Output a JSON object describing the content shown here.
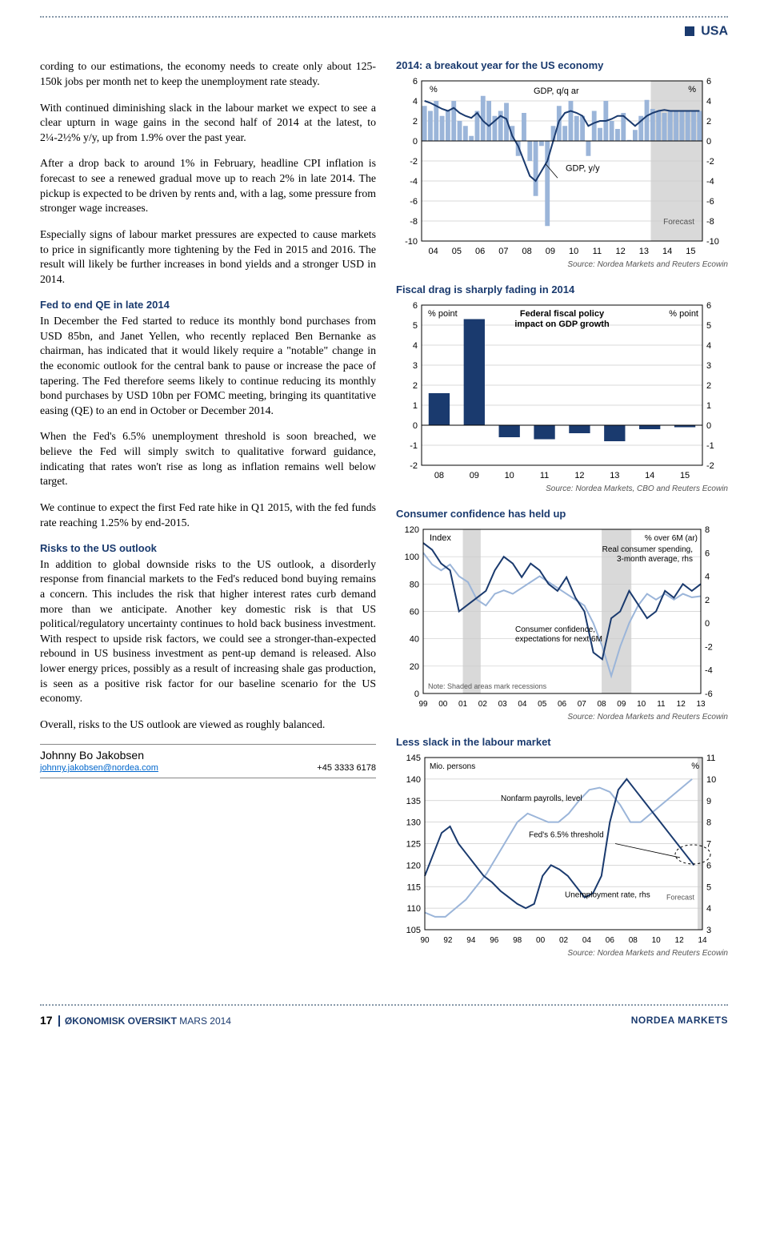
{
  "header": {
    "label": "USA"
  },
  "body": {
    "p1": "cording to our estimations, the economy needs to create only about 125-150k jobs per month net to keep the unemployment rate steady.",
    "p2": "With continued diminishing slack in the labour market we expect to see a clear upturn in wage gains in the second half of 2014 at the latest, to 2¼-2½% y/y, up from 1.9% over the past year.",
    "p3": "After a drop back to around 1% in February, headline CPI inflation is forecast to see a renewed gradual move up to reach 2% in late 2014. The pickup is expected to be driven by rents and, with a lag, some pressure from stronger wage increases.",
    "p4": "Especially signs of labour market pressures are expected to cause markets to price in significantly more tightening by the Fed in 2015 and 2016. The result will likely be further increases in bond yields and a stronger USD in 2014.",
    "h1": "Fed to end QE in late 2014",
    "p5": "In December the Fed started to reduce its monthly bond purchases from USD 85bn, and Janet Yellen, who recently replaced Ben Bernanke as chairman, has indicated that it would likely require a \"notable\" change in the economic outlook for the central bank to pause or increase the pace of tapering. The Fed therefore seems likely to continue reducing its monthly bond purchases by USD 10bn per FOMC meeting, bringing its quantitative easing (QE) to an end in October or December 2014.",
    "p6": "When the Fed's 6.5% unemployment threshold is soon breached, we believe the Fed will simply switch to qualitative forward guidance, indicating that rates won't rise as long as inflation remains well below target.",
    "p7": "We continue to expect the first Fed rate hike in Q1 2015, with the fed funds rate reaching 1.25% by end-2015.",
    "h2": "Risks to the US outlook",
    "p8": "In addition to global downside risks to the US outlook, a disorderly response from financial markets to the Fed's reduced bond buying remains a concern. This includes the risk that higher interest rates curb demand more than we anticipate. Another key domestic risk is that US political/regulatory uncertainty continues to hold back business investment. With respect to upside risk factors, we could see a stronger-than-expected rebound in US business investment as pent-up demand is released. Also lower energy prices, possibly as a result of increasing shale gas production, is seen as a positive risk factor for our baseline scenario for the US economy.",
    "p9": "Overall, risks to the US outlook are viewed as roughly balanced."
  },
  "author": {
    "name": "Johnny Bo Jakobsen",
    "email": "johnny.jakobsen@nordea.com",
    "phone": "+45 3333 6178"
  },
  "charts": {
    "c1": {
      "title": "2014: a breakout year for the US economy",
      "type": "combo-bar-line",
      "y_left_unit": "%",
      "y_right_unit": "%",
      "ylim": [
        -10,
        6
      ],
      "ytick_step": 2,
      "xlabels": [
        "04",
        "05",
        "06",
        "07",
        "08",
        "09",
        "10",
        "11",
        "12",
        "13",
        "14",
        "15"
      ],
      "forecast_start": "14",
      "bar_label": "GDP, q/q ar",
      "line_label": "GDP, y/y",
      "forecast_label": "Forecast",
      "bar_color": "#9bb5d9",
      "line_color": "#1a3a6e",
      "grid_color": "#cccccc",
      "forecast_bg": "#d9d9d9",
      "bars": [
        3.5,
        3,
        4,
        2.5,
        3,
        4,
        2,
        1.5,
        0.5,
        3,
        4.5,
        4,
        2.5,
        3,
        3.8,
        1.5,
        -1.5,
        2.8,
        -2,
        -5.5,
        -0.5,
        -8.5,
        1.5,
        3.5,
        1.5,
        4,
        2.5,
        2.5,
        -1.5,
        3,
        1.3,
        4,
        2,
        1.2,
        2.8,
        0.1,
        1.1,
        2.5,
        4.1,
        3.2,
        3,
        2.8,
        3,
        3,
        3,
        3,
        3,
        3
      ],
      "line": [
        4,
        3.8,
        3.5,
        3.2,
        3,
        3.3,
        2.8,
        2.5,
        2.3,
        2.8,
        2,
        1.5,
        2,
        2.5,
        2.2,
        0.5,
        -0.5,
        -2,
        -3.5,
        -4,
        -3,
        -2,
        0,
        2,
        2.8,
        3,
        2.8,
        2.5,
        1.5,
        1.8,
        2,
        2,
        2.2,
        2.5,
        2.5,
        2,
        1.5,
        2,
        2.5,
        2.8,
        3,
        3.1,
        3,
        3,
        3,
        3,
        3,
        3
      ],
      "source": "Source: Nordea Markets and Reuters Ecowin"
    },
    "c2": {
      "title": "Fiscal drag is sharply fading in 2014",
      "type": "bar",
      "y_left_unit": "% point",
      "y_right_unit": "% point",
      "subtitle": "Federal fiscal policy\nimpact on GDP growth",
      "ylim": [
        -2,
        6
      ],
      "ytick_step": 1,
      "xlabels": [
        "08",
        "09",
        "10",
        "11",
        "12",
        "13",
        "14",
        "15"
      ],
      "values": [
        1.6,
        5.3,
        -0.6,
        -0.7,
        -0.4,
        -0.8,
        -0.2,
        -0.1
      ],
      "bar_color": "#1a3a6e",
      "grid_color": "#cccccc",
      "source": "Source: Nordea Markets, CBO and Reuters Ecowin"
    },
    "c3": {
      "title": "Consumer confidence has held up",
      "type": "dual-line",
      "y_left_unit": "Index",
      "y_right_unit": "% over 6M (ar)",
      "ylim_left": [
        0,
        120
      ],
      "ytick_left": 20,
      "ylim_right": [
        -6,
        8
      ],
      "ytick_right": 2,
      "xlabels": [
        "99",
        "00",
        "01",
        "02",
        "03",
        "04",
        "05",
        "06",
        "07",
        "08",
        "09",
        "10",
        "11",
        "12",
        "13"
      ],
      "recession_bands": [
        [
          "01",
          "01.9"
        ],
        [
          "08",
          "09.5"
        ]
      ],
      "line1_label": "Real consumer spending,\n3-month average, rhs",
      "line2_label": "Consumer confidence,\nexpectations for next 6M",
      "note": "Note: Shaded areas mark recessions",
      "line1_color": "#9bb5d9",
      "line2_color": "#1a3a6e",
      "recession_bg": "#d9d9d9",
      "grid_color": "#cccccc",
      "line1_data": [
        6,
        5,
        4.5,
        5,
        4,
        3.5,
        2,
        1.5,
        2.5,
        2.8,
        2.5,
        3,
        3.5,
        4,
        3.5,
        3,
        2.5,
        2,
        1.5,
        0,
        -2,
        -4.5,
        -2,
        0,
        1.5,
        2.5,
        2,
        2.5,
        2,
        2.5,
        2.2,
        2.3
      ],
      "line2_data": [
        110,
        105,
        95,
        90,
        60,
        65,
        70,
        75,
        90,
        100,
        95,
        85,
        95,
        90,
        80,
        75,
        85,
        70,
        60,
        30,
        25,
        55,
        60,
        75,
        65,
        55,
        60,
        75,
        70,
        80,
        75,
        80
      ],
      "source": "Source: Nordea Markets and Reuters Ecowin"
    },
    "c4": {
      "title": "Less slack in the labour market",
      "type": "dual-line",
      "y_left_unit": "Mio. persons",
      "y_right_unit": "%",
      "ylim_left": [
        105,
        145
      ],
      "ytick_left": 5,
      "ylim_right": [
        3,
        11
      ],
      "ytick_right": 1,
      "xlabels": [
        "90",
        "92",
        "94",
        "96",
        "98",
        "00",
        "02",
        "04",
        "06",
        "08",
        "10",
        "12",
        "14"
      ],
      "forecast_start": "14",
      "line1_label": "Nonfarm payrolls, level",
      "line2_label": "Unemployment rate, rhs",
      "threshold_label": "Fed's 6.5% threshold",
      "forecast_label": "Forecast",
      "line1_color": "#9bb5d9",
      "line2_color": "#1a3a6e",
      "forecast_bg": "#d9d9d9",
      "grid_color": "#cccccc",
      "threshold_y": 6.5,
      "line1_data": [
        109,
        108,
        108,
        110,
        112,
        115,
        118,
        122,
        126,
        130,
        132,
        131,
        130,
        130,
        132,
        135,
        137.5,
        138,
        137,
        134,
        130,
        130,
        132,
        134,
        136,
        138,
        140,
        142
      ],
      "line2_data": [
        5.5,
        6.5,
        7.5,
        7.8,
        7,
        6.5,
        6,
        5.5,
        5.2,
        4.8,
        4.5,
        4.2,
        4,
        4.2,
        5.5,
        6,
        5.8,
        5.5,
        5,
        4.5,
        4.7,
        5.5,
        8,
        9.5,
        10,
        9.5,
        9,
        8.5,
        8,
        7.5,
        7,
        6.5,
        6,
        5.5
      ],
      "source": "Source: Nordea Markets and Reuters Ecowin"
    }
  },
  "footer": {
    "page": "17",
    "title": "ØKONOMISK OVERSIKT",
    "date": "MARS 2014",
    "right": "NORDEA MARKETS"
  }
}
